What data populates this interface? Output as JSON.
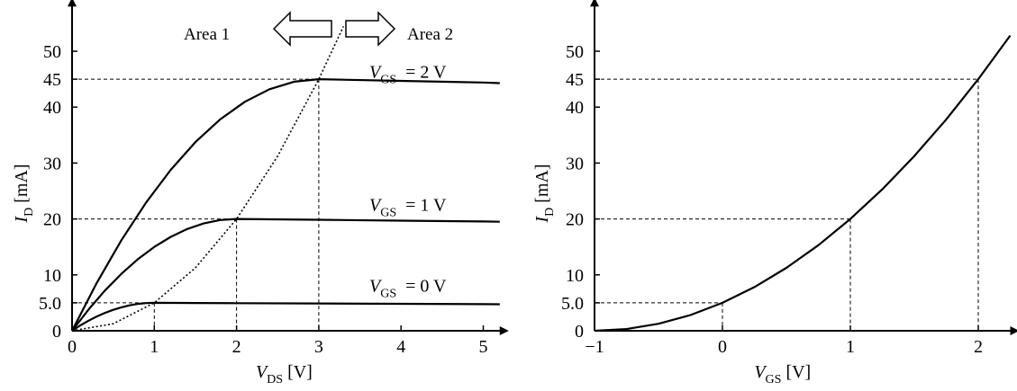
{
  "chart_data": [
    {
      "type": "line",
      "xlabel": {
        "var": "V",
        "sub": "DS",
        "unit": "[V]"
      },
      "ylabel": {
        "var": "I",
        "sub": "D",
        "unit": "[mA]"
      },
      "xlim": [
        0,
        5.2
      ],
      "ylim": [
        0,
        58
      ],
      "x_ticks": [
        0,
        1,
        2,
        3,
        4,
        5
      ],
      "x_tick_labels": [
        "0",
        "1",
        "2",
        "3",
        "4",
        "5"
      ],
      "y_ticks": [
        0,
        5,
        10,
        20,
        30,
        40,
        45,
        50
      ],
      "y_tick_labels": [
        "0",
        "5.0",
        "10",
        "20",
        "30",
        "40",
        "45",
        "50"
      ],
      "series": [
        {
          "name": "V_GS = 0 V",
          "label": {
            "var": "V",
            "sub": "GS",
            "text": " = 0 V"
          },
          "x": [
            0,
            0.1,
            0.2,
            0.3,
            0.4,
            0.5,
            0.6,
            0.7,
            0.8,
            0.9,
            1.0,
            1.5,
            2.0,
            3.0,
            4.0,
            5.0,
            5.2
          ],
          "y": [
            0,
            0.95,
            1.8,
            2.55,
            3.2,
            3.75,
            4.2,
            4.55,
            4.8,
            4.95,
            5.0,
            4.97,
            4.94,
            4.88,
            4.82,
            4.76,
            4.75
          ]
        },
        {
          "name": "V_GS = 1 V",
          "label": {
            "var": "V",
            "sub": "GS",
            "text": " = 1 V"
          },
          "x": [
            0,
            0.2,
            0.4,
            0.6,
            0.8,
            1.0,
            1.2,
            1.4,
            1.6,
            1.8,
            2.0,
            3.0,
            4.0,
            5.0,
            5.2
          ],
          "y": [
            0,
            3.8,
            7.2,
            10.2,
            12.8,
            15.0,
            16.8,
            18.2,
            19.2,
            19.8,
            20.0,
            19.85,
            19.7,
            19.55,
            19.5
          ],
          "dashed_at": {
            "x": 2,
            "y": 20
          }
        },
        {
          "name": "V_GS = 2 V",
          "label": {
            "var": "V",
            "sub": "GS",
            "text": " = 2 V"
          },
          "x": [
            0,
            0.3,
            0.6,
            0.9,
            1.2,
            1.5,
            1.8,
            2.1,
            2.4,
            2.7,
            3.0,
            4.0,
            5.0,
            5.2
          ],
          "y": [
            0,
            8.55,
            16.2,
            22.95,
            28.8,
            33.75,
            37.8,
            40.95,
            43.2,
            44.55,
            45.0,
            44.7,
            44.4,
            44.3
          ],
          "dashed_at": {
            "x": 3,
            "y": 45
          }
        },
        {
          "name": "saturation boundary",
          "style": "dotted",
          "x": [
            0,
            0.5,
            1.0,
            1.5,
            2.0,
            2.5,
            3.0,
            3.3
          ],
          "y": [
            0,
            1.25,
            5.0,
            11.25,
            20.0,
            31.25,
            45.0,
            54.45
          ]
        }
      ],
      "annotations": {
        "area1": "Area 1",
        "area2": "Area 2"
      }
    },
    {
      "type": "line",
      "xlabel": {
        "var": "V",
        "sub": "GS",
        "unit": "[V]"
      },
      "ylabel": {
        "var": "I",
        "sub": "D",
        "unit": "[mA]"
      },
      "xlim": [
        -1,
        2.25
      ],
      "ylim": [
        0,
        58
      ],
      "x_ticks": [
        -1,
        0,
        1,
        2
      ],
      "x_tick_labels": [
        "−1",
        "0",
        "1",
        "2"
      ],
      "y_ticks": [
        0,
        5,
        10,
        20,
        30,
        40,
        45,
        50
      ],
      "y_tick_labels": [
        "0",
        "5.0",
        "10",
        "20",
        "30",
        "40",
        "45",
        "50"
      ],
      "series": [
        {
          "style": "solid",
          "x": [
            -1,
            -0.75,
            -0.5,
            -0.25,
            0,
            0.25,
            0.5,
            0.75,
            1.0,
            1.25,
            1.5,
            1.75,
            2.0,
            2.25
          ],
          "y": [
            0,
            0.31,
            1.25,
            2.81,
            5.0,
            7.81,
            11.25,
            15.31,
            20.0,
            25.31,
            31.25,
            37.81,
            45.0,
            52.81
          ]
        }
      ],
      "guides": [
        {
          "x": 0,
          "y": 5
        },
        {
          "x": 1,
          "y": 20
        },
        {
          "x": 2,
          "y": 45
        }
      ]
    }
  ]
}
